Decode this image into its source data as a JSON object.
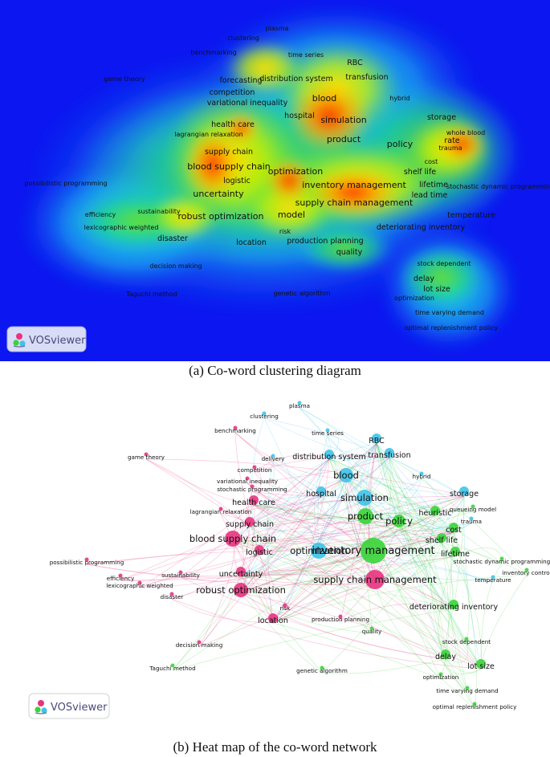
{
  "colors": {
    "heat_background": "#0b16f0",
    "cluster_pink": "#e8337e",
    "cluster_blue": "#3fc3e8",
    "cluster_green": "#38d438",
    "logo_text": "#4a4a7a"
  },
  "logo": {
    "label": "VOSviewer",
    "icon": "vosviewer-logo-icon"
  },
  "captions": {
    "heatmap": "(a) Co-word clustering diagram",
    "network": "(b) Heat map of the co-word network"
  },
  "heat_terms": [
    {
      "label": "plasma",
      "weight": 1
    },
    {
      "label": "clustering",
      "weight": 1
    },
    {
      "label": "benchmarking",
      "weight": 1
    },
    {
      "label": "time series",
      "weight": 1
    },
    {
      "label": "RBC",
      "weight": 2
    },
    {
      "label": "game theory",
      "weight": 1
    },
    {
      "label": "forecasting",
      "weight": 2
    },
    {
      "label": "distribution system",
      "weight": 2
    },
    {
      "label": "transfusion",
      "weight": 2
    },
    {
      "label": "competition",
      "weight": 2
    },
    {
      "label": "hybrid",
      "weight": 1
    },
    {
      "label": "blood",
      "weight": 3
    },
    {
      "label": "variational inequality",
      "weight": 2
    },
    {
      "label": "hospital",
      "weight": 2
    },
    {
      "label": "storage",
      "weight": 2
    },
    {
      "label": "health care",
      "weight": 2
    },
    {
      "label": "simulation",
      "weight": 3
    },
    {
      "label": "whole blood",
      "weight": 1
    },
    {
      "label": "lagrangian relaxation",
      "weight": 1
    },
    {
      "label": "product",
      "weight": 3
    },
    {
      "label": "policy",
      "weight": 3
    },
    {
      "label": "rate",
      "weight": 2
    },
    {
      "label": "trauma",
      "weight": 1
    },
    {
      "label": "supply chain",
      "weight": 2
    },
    {
      "label": "cost",
      "weight": 1
    },
    {
      "label": "blood supply chain",
      "weight": 3
    },
    {
      "label": "optimization",
      "weight": 3
    },
    {
      "label": "shelf life",
      "weight": 2
    },
    {
      "label": "logistic",
      "weight": 2
    },
    {
      "label": "lifetime",
      "weight": 2
    },
    {
      "label": "possibilistic programming",
      "weight": 1
    },
    {
      "label": "inventory management",
      "weight": 3
    },
    {
      "label": "stochastic dynamic programming",
      "weight": 1
    },
    {
      "label": "uncertainty",
      "weight": 3
    },
    {
      "label": "lead time",
      "weight": 2
    },
    {
      "label": "supply chain management",
      "weight": 3
    },
    {
      "label": "sustainability",
      "weight": 1
    },
    {
      "label": "efficiency",
      "weight": 1
    },
    {
      "label": "robust optimization",
      "weight": 3
    },
    {
      "label": "model",
      "weight": 3
    },
    {
      "label": "temperature",
      "weight": 2
    },
    {
      "label": "lexicographic weighted",
      "weight": 1
    },
    {
      "label": "deteriorating inventory",
      "weight": 2
    },
    {
      "label": "risk",
      "weight": 1
    },
    {
      "label": "disaster",
      "weight": 2
    },
    {
      "label": "location",
      "weight": 2
    },
    {
      "label": "production planning",
      "weight": 2
    },
    {
      "label": "quality",
      "weight": 2
    },
    {
      "label": "stock dependent",
      "weight": 1
    },
    {
      "label": "decision making",
      "weight": 1
    },
    {
      "label": "delay",
      "weight": 2
    },
    {
      "label": "lot size",
      "weight": 2
    },
    {
      "label": "Taguchi method",
      "weight": 1
    },
    {
      "label": "genetic algorithm",
      "weight": 1
    },
    {
      "label": "optimization",
      "weight": 1
    },
    {
      "label": "time varying demand",
      "weight": 1
    },
    {
      "label": "optimal replenishment policy",
      "weight": 1
    }
  ],
  "network_terms": [
    {
      "label": "plasma",
      "cluster": "blue",
      "weight": 1
    },
    {
      "label": "clustering",
      "cluster": "blue",
      "weight": 1
    },
    {
      "label": "benchmarking",
      "cluster": "pink",
      "weight": 1
    },
    {
      "label": "time series",
      "cluster": "blue",
      "weight": 1
    },
    {
      "label": "RBC",
      "cluster": "blue",
      "weight": 2
    },
    {
      "label": "game theory",
      "cluster": "pink",
      "weight": 1
    },
    {
      "label": "transfusion",
      "cluster": "blue",
      "weight": 2
    },
    {
      "label": "delivery",
      "cluster": "blue",
      "weight": 1
    },
    {
      "label": "distribution system",
      "cluster": "blue",
      "weight": 2
    },
    {
      "label": "competition",
      "cluster": "pink",
      "weight": 1
    },
    {
      "label": "hybrid",
      "cluster": "blue",
      "weight": 1
    },
    {
      "label": "blood",
      "cluster": "blue",
      "weight": 3
    },
    {
      "label": "variational inequality",
      "cluster": "pink",
      "weight": 1
    },
    {
      "label": "stochastic programming",
      "cluster": "pink",
      "weight": 1
    },
    {
      "label": "hospital",
      "cluster": "blue",
      "weight": 2
    },
    {
      "label": "simulation",
      "cluster": "blue",
      "weight": 3
    },
    {
      "label": "storage",
      "cluster": "blue",
      "weight": 2
    },
    {
      "label": "health care",
      "cluster": "pink",
      "weight": 2
    },
    {
      "label": "queueing model",
      "cluster": "green",
      "weight": 1
    },
    {
      "label": "lagrangian relaxation",
      "cluster": "pink",
      "weight": 1
    },
    {
      "label": "product",
      "cluster": "green",
      "weight": 3
    },
    {
      "label": "policy",
      "cluster": "green",
      "weight": 3
    },
    {
      "label": "heuristic",
      "cluster": "green",
      "weight": 2
    },
    {
      "label": "trauma",
      "cluster": "blue",
      "weight": 1
    },
    {
      "label": "supply chain",
      "cluster": "pink",
      "weight": 2
    },
    {
      "label": "cost",
      "cluster": "green",
      "weight": 2
    },
    {
      "label": "blood supply chain",
      "cluster": "pink",
      "weight": 3
    },
    {
      "label": "optimization",
      "cluster": "blue",
      "weight": 3
    },
    {
      "label": "shelf life",
      "cluster": "green",
      "weight": 2
    },
    {
      "label": "inventory management",
      "cluster": "green",
      "weight": 4
    },
    {
      "label": "logistic",
      "cluster": "pink",
      "weight": 2
    },
    {
      "label": "lifetime",
      "cluster": "green",
      "weight": 2
    },
    {
      "label": "possibilistic programming",
      "cluster": "pink",
      "weight": 1
    },
    {
      "label": "stochastic dynamic programming",
      "cluster": "green",
      "weight": 1
    },
    {
      "label": "uncertainty",
      "cluster": "pink",
      "weight": 2
    },
    {
      "label": "supply chain management",
      "cluster": "pink",
      "weight": 3
    },
    {
      "label": "inventory control",
      "cluster": "green",
      "weight": 1
    },
    {
      "label": "sustainability",
      "cluster": "pink",
      "weight": 1
    },
    {
      "label": "temperature",
      "cluster": "blue",
      "weight": 1
    },
    {
      "label": "efficiency",
      "cluster": "pink",
      "weight": 1
    },
    {
      "label": "robust optimization",
      "cluster": "pink",
      "weight": 3
    },
    {
      "label": "lexicographic weighted",
      "cluster": "pink",
      "weight": 1
    },
    {
      "label": "deteriorating inventory",
      "cluster": "green",
      "weight": 2
    },
    {
      "label": "disaster",
      "cluster": "pink",
      "weight": 1
    },
    {
      "label": "risk",
      "cluster": "pink",
      "weight": 1
    },
    {
      "label": "location",
      "cluster": "pink",
      "weight": 2
    },
    {
      "label": "production planning",
      "cluster": "pink",
      "weight": 1
    },
    {
      "label": "quality",
      "cluster": "green",
      "weight": 1
    },
    {
      "label": "stock dependent",
      "cluster": "green",
      "weight": 1
    },
    {
      "label": "decision making",
      "cluster": "pink",
      "weight": 1
    },
    {
      "label": "delay",
      "cluster": "green",
      "weight": 2
    },
    {
      "label": "lot size",
      "cluster": "green",
      "weight": 2
    },
    {
      "label": "Taguchi method",
      "cluster": "green",
      "weight": 1
    },
    {
      "label": "genetic algorithm",
      "cluster": "green",
      "weight": 1
    },
    {
      "label": "optimization",
      "cluster": "green",
      "weight": 1
    },
    {
      "label": "time varying demand",
      "cluster": "green",
      "weight": 1
    },
    {
      "label": "optimal replenishment policy",
      "cluster": "green",
      "weight": 1
    }
  ]
}
